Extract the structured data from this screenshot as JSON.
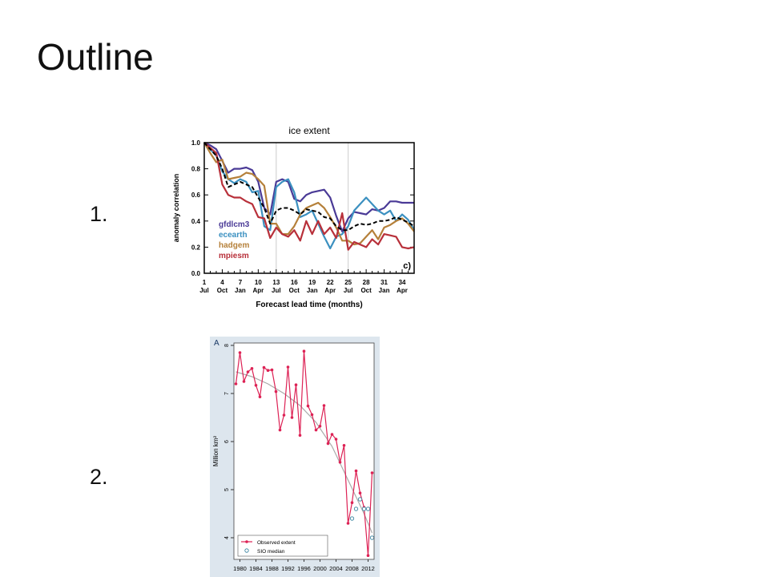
{
  "slide": {
    "title": "Outline",
    "items": [
      {
        "number": "1."
      },
      {
        "number": "2."
      }
    ]
  },
  "chart_data": [
    {
      "type": "line",
      "title": "ice extent",
      "xlabel": "Forecast lead time (months)",
      "ylabel": "anomaly correlation",
      "panel_label": "c)",
      "ylim": [
        0,
        1
      ],
      "xlim": [
        1,
        36
      ],
      "yticks": [
        "0.0",
        "0.2",
        "0.4",
        "0.6",
        "0.8",
        "1.0"
      ],
      "xticks": [
        {
          "x": 1,
          "top": "1",
          "bottom": "Jul"
        },
        {
          "x": 4,
          "top": "4",
          "bottom": "Oct"
        },
        {
          "x": 7,
          "top": "7",
          "bottom": "Jan"
        },
        {
          "x": 10,
          "top": "10",
          "bottom": "Apr"
        },
        {
          "x": 13,
          "top": "13",
          "bottom": "Jul"
        },
        {
          "x": 16,
          "top": "16",
          "bottom": "Oct"
        },
        {
          "x": 19,
          "top": "19",
          "bottom": "Jan"
        },
        {
          "x": 22,
          "top": "22",
          "bottom": "Apr"
        },
        {
          "x": 25,
          "top": "25",
          "bottom": "Jul"
        },
        {
          "x": 28,
          "top": "28",
          "bottom": "Oct"
        },
        {
          "x": 31,
          "top": "31",
          "bottom": "Jan"
        },
        {
          "x": 34,
          "top": "34",
          "bottom": "Apr"
        }
      ],
      "legend": "bottom-left",
      "x": [
        1,
        2,
        3,
        4,
        5,
        6,
        7,
        8,
        9,
        10,
        11,
        12,
        13,
        14,
        15,
        16,
        17,
        18,
        19,
        20,
        21,
        22,
        23,
        24,
        25,
        26,
        27,
        28,
        29,
        30,
        31,
        32,
        33,
        34,
        35,
        36
      ],
      "series": [
        {
          "name": "gfdlcm3",
          "color": "#4a3a96",
          "dashed": false,
          "values": [
            1.0,
            0.98,
            0.95,
            0.86,
            0.77,
            0.8,
            0.8,
            0.81,
            0.79,
            0.7,
            0.5,
            0.45,
            0.7,
            0.72,
            0.7,
            0.57,
            0.55,
            0.6,
            0.62,
            0.63,
            0.64,
            0.58,
            0.44,
            0.32,
            0.42,
            0.47,
            0.46,
            0.45,
            0.49,
            0.48,
            0.5,
            0.55,
            0.55,
            0.54,
            0.54,
            0.54
          ]
        },
        {
          "name": "ecearth",
          "color": "#3b90c0",
          "dashed": false,
          "values": [
            1.0,
            0.95,
            0.9,
            0.78,
            0.72,
            0.69,
            0.72,
            0.7,
            0.62,
            0.63,
            0.36,
            0.33,
            0.66,
            0.7,
            0.72,
            0.62,
            0.43,
            0.45,
            0.48,
            0.38,
            0.28,
            0.19,
            0.28,
            0.3,
            0.36,
            0.48,
            0.53,
            0.58,
            0.53,
            0.48,
            0.45,
            0.48,
            0.4,
            0.45,
            0.41,
            0.33
          ]
        },
        {
          "name": "hadgem",
          "color": "#b5803a",
          "dashed": false,
          "values": [
            1.0,
            0.92,
            0.85,
            0.87,
            0.72,
            0.73,
            0.74,
            0.77,
            0.76,
            0.72,
            0.67,
            0.38,
            0.38,
            0.3,
            0.3,
            0.36,
            0.45,
            0.5,
            0.52,
            0.54,
            0.5,
            0.43,
            0.35,
            0.25,
            0.25,
            0.22,
            0.23,
            0.28,
            0.33,
            0.26,
            0.35,
            0.37,
            0.4,
            0.42,
            0.38,
            0.32
          ]
        },
        {
          "name": "mpiesm",
          "color": "#b8303a",
          "dashed": false,
          "values": [
            1.0,
            0.96,
            0.92,
            0.68,
            0.6,
            0.58,
            0.58,
            0.55,
            0.53,
            0.43,
            0.42,
            0.27,
            0.35,
            0.3,
            0.28,
            0.33,
            0.25,
            0.4,
            0.3,
            0.4,
            0.3,
            0.35,
            0.27,
            0.46,
            0.18,
            0.24,
            0.22,
            0.2,
            0.26,
            0.22,
            0.3,
            0.29,
            0.28,
            0.2,
            0.19,
            0.2
          ]
        },
        {
          "name": "",
          "color": "#000000",
          "dashed": true,
          "values": [
            1.0,
            0.95,
            0.9,
            0.8,
            0.66,
            0.68,
            0.7,
            0.68,
            0.66,
            0.58,
            0.5,
            0.38,
            0.48,
            0.5,
            0.5,
            0.48,
            0.45,
            0.49,
            0.48,
            0.47,
            0.43,
            0.42,
            0.36,
            0.33,
            0.33,
            0.36,
            0.38,
            0.37,
            0.38,
            0.4,
            0.4,
            0.41,
            0.43,
            0.41,
            0.39,
            0.36
          ]
        }
      ]
    },
    {
      "type": "line",
      "panel_label": "A",
      "ylabel": "Million km²",
      "ylim": [
        3.55,
        8.05
      ],
      "xlim": [
        1978.5,
        2013.5
      ],
      "yticks": [
        "4",
        "5",
        "6",
        "7",
        "8"
      ],
      "xticks": [
        "1980",
        "1984",
        "1988",
        "1992",
        "1996",
        "2000",
        "2004",
        "2008",
        "2012"
      ],
      "legend": "bottom-left",
      "series": [
        {
          "name": "Observed extent",
          "color": "#dd2255",
          "marker": "filled-dot",
          "x": [
            1979,
            1980,
            1981,
            1982,
            1983,
            1984,
            1985,
            1986,
            1987,
            1988,
            1989,
            1990,
            1991,
            1992,
            1993,
            1994,
            1995,
            1996,
            1997,
            1998,
            1999,
            2000,
            2001,
            2002,
            2003,
            2004,
            2005,
            2006,
            2007,
            2008,
            2009,
            2010,
            2011,
            2012,
            2013
          ],
          "values": [
            7.2,
            7.85,
            7.25,
            7.45,
            7.52,
            7.17,
            6.93,
            7.54,
            7.48,
            7.49,
            7.04,
            6.24,
            6.55,
            7.55,
            6.5,
            7.18,
            6.13,
            7.88,
            6.74,
            6.56,
            6.24,
            6.32,
            6.75,
            5.96,
            6.15,
            6.05,
            5.57,
            5.92,
            4.3,
            4.73,
            5.39,
            4.93,
            4.63,
            3.63,
            5.35
          ]
        },
        {
          "name": "SIO median",
          "color": "#2a7a99",
          "marker": "open-circle",
          "x": [
            2008,
            2009,
            2010,
            2011,
            2012,
            2013
          ],
          "values": [
            4.4,
            4.6,
            4.8,
            4.6,
            4.6,
            4.0
          ]
        },
        {
          "name": "",
          "color": "#aaaaaa",
          "marker": "none",
          "x": [
            1979,
            1983,
            1987,
            1991,
            1995,
            1999,
            2003,
            2007,
            2011,
            2013
          ],
          "values": [
            7.45,
            7.35,
            7.2,
            7.0,
            6.75,
            6.4,
            5.9,
            5.2,
            4.5,
            4.1
          ]
        }
      ]
    }
  ]
}
